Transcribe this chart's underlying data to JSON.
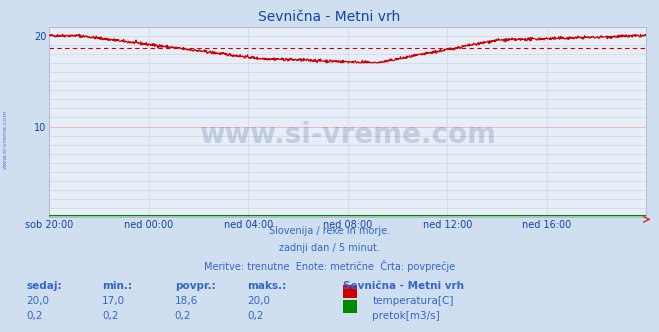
{
  "title": "Sevnična - Metni vrh",
  "title_color": "#1144aa",
  "bg_color": "#d0dff0",
  "plot_bg_color": "#e8eef8",
  "ylim": [
    0,
    21
  ],
  "yticks": [
    10,
    20
  ],
  "tick_color": "#1144aa",
  "xtick_labels": [
    "sob 20:00",
    "ned 00:00",
    "ned 04:00",
    "ned 08:00",
    "ned 12:00",
    "ned 16:00"
  ],
  "xtick_positions": [
    0,
    240,
    480,
    720,
    960,
    1200
  ],
  "total_points": 1440,
  "avg_line_value": 18.6,
  "avg_line_color": "#cc0000",
  "temp_line_color": "#cc0000",
  "flow_line_color": "#008800",
  "flow_value": 0.2,
  "subtitle_lines": [
    "Slovenija / reke in morje.",
    "zadnji dan / 5 minut.",
    "Meritve: trenutne  Enote: metrične  Črta: povprečje"
  ],
  "subtitle_color": "#3366cc",
  "table_header": [
    "sedaj:",
    "min.:",
    "povpr.:",
    "maks.:"
  ],
  "table_row1": [
    "20,0",
    "17,0",
    "18,6",
    "20,0"
  ],
  "table_row2": [
    "0,2",
    "0,2",
    "0,2",
    "0,2"
  ],
  "legend_title": "Sevnična - Metni vrh",
  "legend_temp_label": "temperatura[C]",
  "legend_flow_label": "pretok[m3/s]",
  "legend_temp_color": "#cc0000",
  "legend_flow_color": "#008800",
  "watermark_text": "www.si-vreme.com",
  "watermark_color": "#1a3a7a",
  "watermark_alpha": 0.18,
  "side_label": "www.si-vreme.com",
  "side_label_color": "#3366cc"
}
